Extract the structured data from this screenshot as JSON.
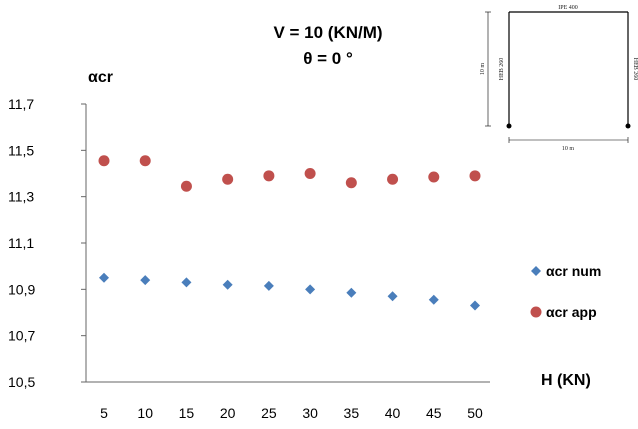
{
  "chart_data": {
    "type": "scatter",
    "title_lines": [
      "V = 10 (KN/M)",
      "θ = 0 °"
    ],
    "ylabel": "αcr",
    "xlabel": "H (KN)",
    "categories": [
      "5",
      "10",
      "15",
      "20",
      "25",
      "30",
      "35",
      "40",
      "45",
      "50"
    ],
    "yticks": [
      "11,7",
      "11,5",
      "11,3",
      "11,1",
      "10,9",
      "10,7",
      "10,5"
    ],
    "ylim": [
      10.5,
      11.7
    ],
    "grid": false,
    "legend_position": "right",
    "series": [
      {
        "name": "αcr num",
        "marker": "diamond",
        "color": "#4a7ebb",
        "values": [
          10.95,
          10.94,
          10.93,
          10.92,
          10.915,
          10.9,
          10.885,
          10.87,
          10.855,
          10.83
        ]
      },
      {
        "name": "αcr app",
        "marker": "circle",
        "color": "#c0504d",
        "values": [
          11.455,
          11.455,
          11.345,
          11.375,
          11.39,
          11.4,
          11.36,
          11.375,
          11.385,
          11.39
        ]
      }
    ]
  },
  "frame_sketch": {
    "beam_label": "IPE 400",
    "left_column_label": "HEB 260",
    "right_column_label": "HEB 260",
    "height_label": "10 m",
    "span_label": "10 m"
  }
}
